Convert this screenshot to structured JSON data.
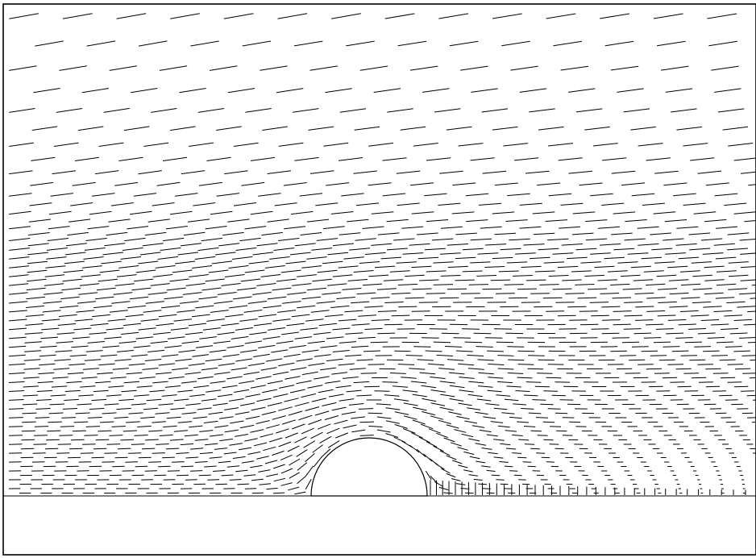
{
  "diagram": {
    "kind": "flow-field-dashes-around-semicircular-obstacle",
    "colors": {
      "background": "#ffffff",
      "ink": "#000000"
    }
  }
}
